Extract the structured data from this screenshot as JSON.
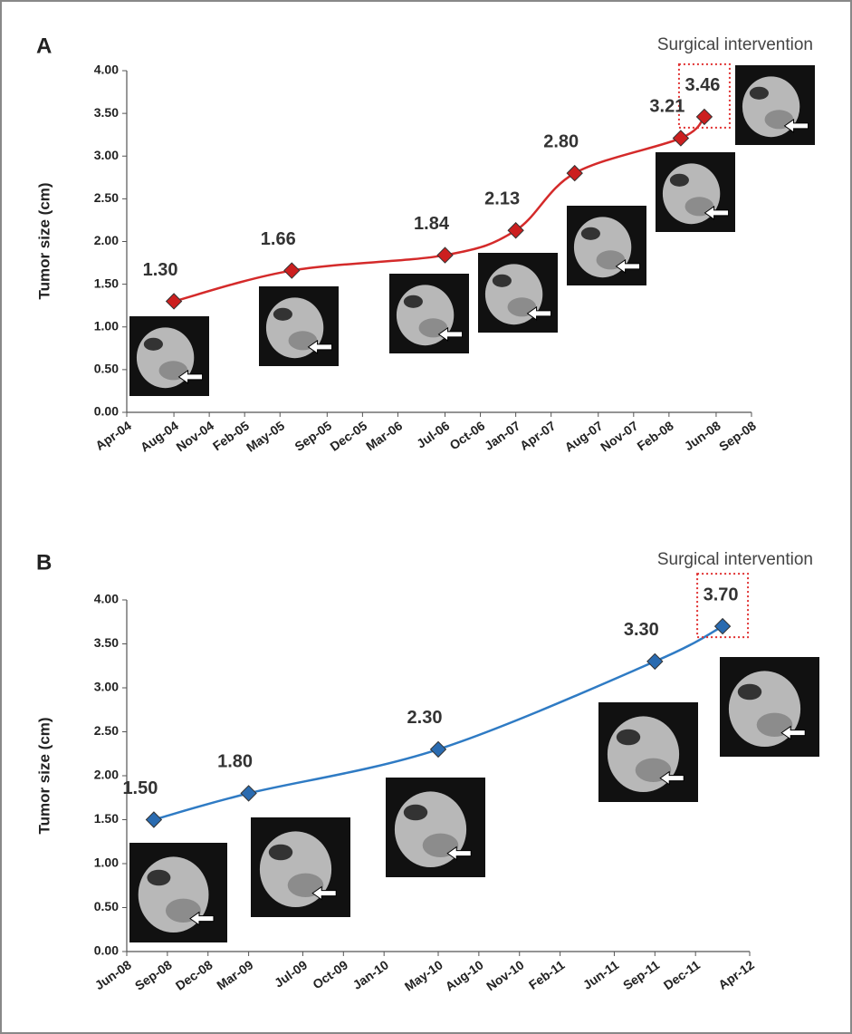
{
  "chart_data": [
    {
      "type": "line",
      "panel": "A",
      "annotation": "Surgical intervention",
      "ylabel": "Tumor size (cm)",
      "color": "#d42a2a",
      "marker_color": "#cc1f1f",
      "x": [
        "2004-08",
        "2005-06",
        "2006-07",
        "2007-01",
        "2007-06",
        "2008-03",
        "2008-05"
      ],
      "values": [
        1.3,
        1.66,
        1.84,
        2.13,
        2.8,
        3.21,
        3.46
      ],
      "value_labels": [
        "1.30",
        "1.66",
        "1.84",
        "2.13",
        "2.80",
        "3.21",
        "3.46"
      ],
      "xlim": [
        "2004-04",
        "2008-09"
      ],
      "xticks": [
        {
          "value": "2004-04",
          "label": "Apr-04"
        },
        {
          "value": "2004-08",
          "label": "Aug-04"
        },
        {
          "value": "2004-11",
          "label": "Nov-04"
        },
        {
          "value": "2005-02",
          "label": "Feb-05"
        },
        {
          "value": "2005-05",
          "label": "May-05"
        },
        {
          "value": "2005-09",
          "label": "Sep-05"
        },
        {
          "value": "2005-12",
          "label": "Dec-05"
        },
        {
          "value": "2006-03",
          "label": "Mar-06"
        },
        {
          "value": "2006-07",
          "label": "Jul-06"
        },
        {
          "value": "2006-10",
          "label": "Oct-06"
        },
        {
          "value": "2007-01",
          "label": "Jan-07"
        },
        {
          "value": "2007-04",
          "label": "Apr-07"
        },
        {
          "value": "2007-08",
          "label": "Aug-07"
        },
        {
          "value": "2007-11",
          "label": "Nov-07"
        },
        {
          "value": "2008-02",
          "label": "Feb-08"
        },
        {
          "value": "2008-06",
          "label": "Jun-08"
        },
        {
          "value": "2008-09",
          "label": "Sep-08"
        }
      ],
      "ylim": [
        0,
        4
      ],
      "yticks": [
        {
          "value": 0,
          "label": "0.00"
        },
        {
          "value": 0.5,
          "label": "0.50"
        },
        {
          "value": 1,
          "label": "1.00"
        },
        {
          "value": 1.5,
          "label": "1.50"
        },
        {
          "value": 2,
          "label": "2.00"
        },
        {
          "value": 2.5,
          "label": "2.50"
        },
        {
          "value": 3,
          "label": "3.00"
        },
        {
          "value": 3.5,
          "label": "3.50"
        },
        {
          "value": 4,
          "label": "4.00"
        }
      ],
      "grid": false
    },
    {
      "type": "line",
      "panel": "B",
      "annotation": "Surgical intervention",
      "ylabel": "Tumor size (cm)",
      "color": "#2f7bc4",
      "marker_color": "#2a6bb0",
      "x": [
        "2008-08",
        "2009-03",
        "2010-05",
        "2011-09",
        "2012-02"
      ],
      "values": [
        1.5,
        1.8,
        2.3,
        3.3,
        3.7
      ],
      "value_labels": [
        "1.50",
        "1.80",
        "2.30",
        "3.30",
        "3.70"
      ],
      "xlim": [
        "2008-06",
        "2012-04"
      ],
      "xticks": [
        {
          "value": "2008-06",
          "label": "Jun-08"
        },
        {
          "value": "2008-09",
          "label": "Sep-08"
        },
        {
          "value": "2008-12",
          "label": "Dec-08"
        },
        {
          "value": "2009-03",
          "label": "Mar-09"
        },
        {
          "value": "2009-07",
          "label": "Jul-09"
        },
        {
          "value": "2009-10",
          "label": "Oct-09"
        },
        {
          "value": "2010-01",
          "label": "Jan-10"
        },
        {
          "value": "2010-05",
          "label": "May-10"
        },
        {
          "value": "2010-08",
          "label": "Aug-10"
        },
        {
          "value": "2010-11",
          "label": "Nov-10"
        },
        {
          "value": "2011-02",
          "label": "Feb-11"
        },
        {
          "value": "2011-06",
          "label": "Jun-11"
        },
        {
          "value": "2011-09",
          "label": "Sep-11"
        },
        {
          "value": "2011-12",
          "label": "Dec-11"
        },
        {
          "value": "2012-04",
          "label": "Apr-12"
        }
      ],
      "ylim": [
        0,
        4
      ],
      "yticks": [
        {
          "value": 0,
          "label": "0.00"
        },
        {
          "value": 0.5,
          "label": "0.50"
        },
        {
          "value": 1,
          "label": "1.00"
        },
        {
          "value": 1.5,
          "label": "1.50"
        },
        {
          "value": 2,
          "label": "2.00"
        },
        {
          "value": 2.5,
          "label": "2.50"
        },
        {
          "value": 3,
          "label": "3.00"
        },
        {
          "value": 3.5,
          "label": "3.50"
        },
        {
          "value": 4,
          "label": "4.00"
        }
      ],
      "grid": false
    }
  ]
}
